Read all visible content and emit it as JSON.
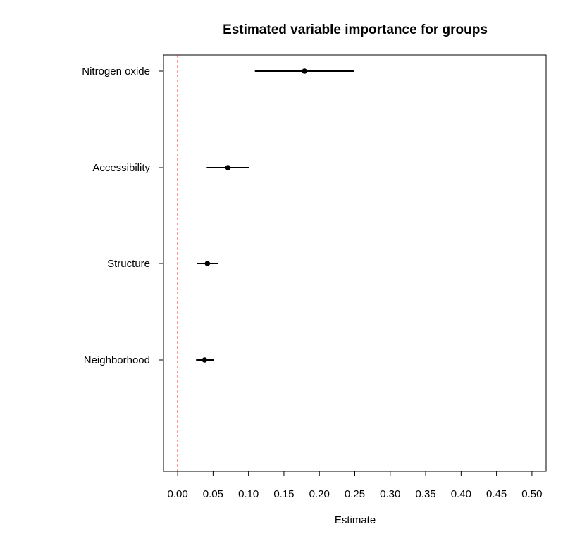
{
  "chart_data": {
    "type": "dot-interval",
    "title": "Estimated variable importance for groups",
    "xlabel": "Estimate",
    "ylabel": "",
    "xlim": [
      -0.02,
      0.52
    ],
    "x_ticks": [
      "0.00",
      "0.05",
      "0.10",
      "0.15",
      "0.20",
      "0.25",
      "0.30",
      "0.35",
      "0.40",
      "0.45",
      "0.50"
    ],
    "reference_line": {
      "x": 0,
      "style": "dashed",
      "color": "#ff0000"
    },
    "categories": [
      "Nitrogen oxide",
      "Accessibility",
      "Structure",
      "Neighborhood"
    ],
    "estimates": [
      0.179,
      0.071,
      0.042,
      0.038
    ],
    "lower": [
      0.109,
      0.041,
      0.027,
      0.026
    ],
    "upper": [
      0.249,
      0.101,
      0.057,
      0.051
    ],
    "grid": false,
    "colors": {
      "points": "#000000",
      "intervals": "#000000",
      "reference": "#ff0000"
    }
  }
}
